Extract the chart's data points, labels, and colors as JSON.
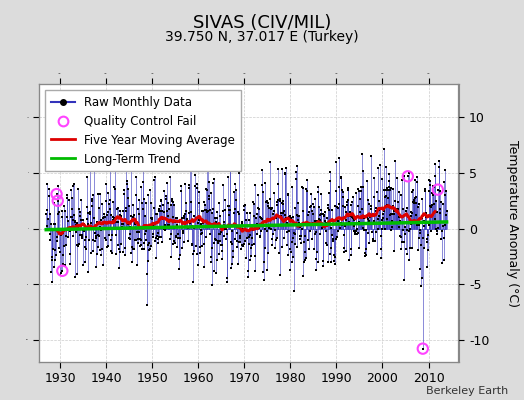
{
  "title": "SIVAS (CIV/MIL)",
  "subtitle": "39.750 N, 37.017 E (Turkey)",
  "ylabel": "Temperature Anomaly (°C)",
  "credit": "Berkeley Earth",
  "xlim": [
    1925.5,
    2016.5
  ],
  "ylim": [
    -12,
    13
  ],
  "yticks": [
    -10,
    -5,
    0,
    5,
    10
  ],
  "xticks": [
    1930,
    1940,
    1950,
    1960,
    1970,
    1980,
    1990,
    2000,
    2010
  ],
  "year_start": 1927,
  "year_end": 2014,
  "seed": 42,
  "bg_color": "#dcdcdc",
  "plot_bg_color": "#ffffff",
  "raw_line_color": "#3333bb",
  "raw_marker_color": "#000000",
  "moving_avg_color": "#dd0000",
  "trend_color": "#00bb00",
  "qc_fail_color": "#ff44ff",
  "legend_fontsize": 8.5,
  "title_fontsize": 13,
  "subtitle_fontsize": 10,
  "noise_std": 2.2
}
